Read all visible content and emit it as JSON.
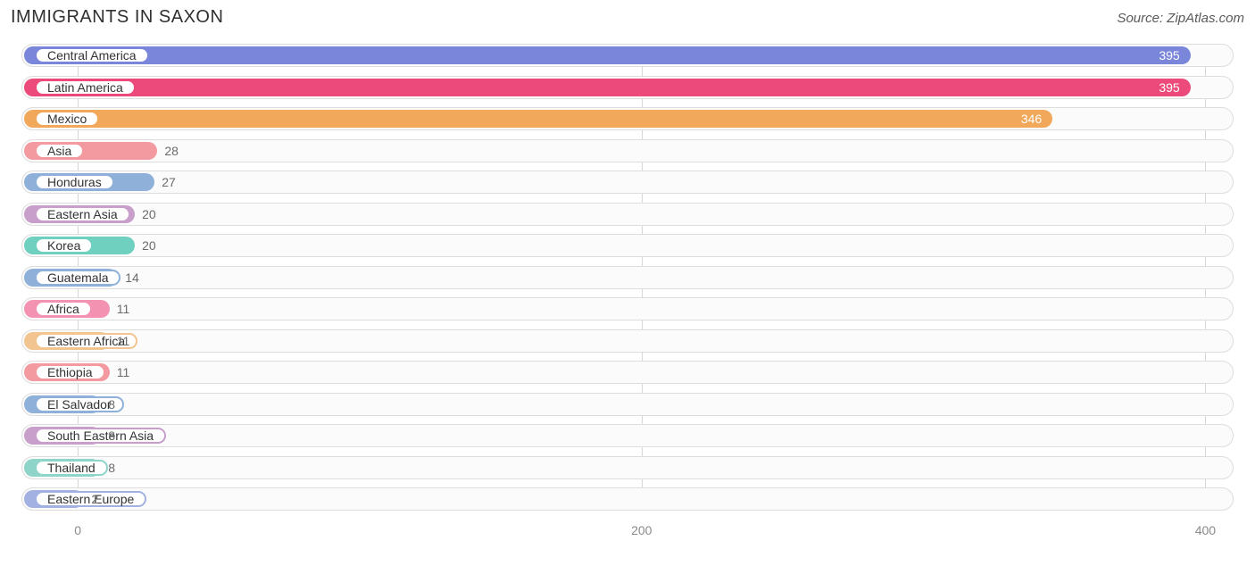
{
  "header": {
    "title": "IMMIGRANTS IN SAXON",
    "source": "Source: ZipAtlas.com"
  },
  "chart": {
    "type": "bar",
    "x_min": -20,
    "x_max": 410,
    "ticks": [
      0,
      200,
      400
    ],
    "grid_color": "#d6d6d6",
    "track_border": "#dddddd",
    "track_bg": "#fbfbfb",
    "value_color_outside": "#6b6b6b",
    "value_color_inside": "#ffffff",
    "label_fontsize": 14,
    "bars": [
      {
        "label": "Central America",
        "value": 395,
        "color": "#7986da",
        "value_inside": true
      },
      {
        "label": "Latin America",
        "value": 395,
        "color": "#eb4a7a",
        "value_inside": true
      },
      {
        "label": "Mexico",
        "value": 346,
        "color": "#f2a85a",
        "value_inside": true
      },
      {
        "label": "Asia",
        "value": 28,
        "color": "#f39aa0",
        "value_inside": false
      },
      {
        "label": "Honduras",
        "value": 27,
        "color": "#8fb1d9",
        "value_inside": false
      },
      {
        "label": "Eastern Asia",
        "value": 20,
        "color": "#c89ecb",
        "value_inside": false
      },
      {
        "label": "Korea",
        "value": 20,
        "color": "#6fd0c0",
        "value_inside": false
      },
      {
        "label": "Guatemala",
        "value": 14,
        "color": "#8fb1d9",
        "value_inside": false
      },
      {
        "label": "Africa",
        "value": 11,
        "color": "#f492b2",
        "value_inside": false
      },
      {
        "label": "Eastern Africa",
        "value": 11,
        "color": "#f2c48f",
        "value_inside": false
      },
      {
        "label": "Ethiopia",
        "value": 11,
        "color": "#f39aa0",
        "value_inside": false
      },
      {
        "label": "El Salvador",
        "value": 8,
        "color": "#8fb1d9",
        "value_inside": false
      },
      {
        "label": "South Eastern Asia",
        "value": 8,
        "color": "#c89ecb",
        "value_inside": false
      },
      {
        "label": "Thailand",
        "value": 8,
        "color": "#8fd4c9",
        "value_inside": false
      },
      {
        "label": "Eastern Europe",
        "value": 2,
        "color": "#a3b0e2",
        "value_inside": false
      }
    ]
  }
}
